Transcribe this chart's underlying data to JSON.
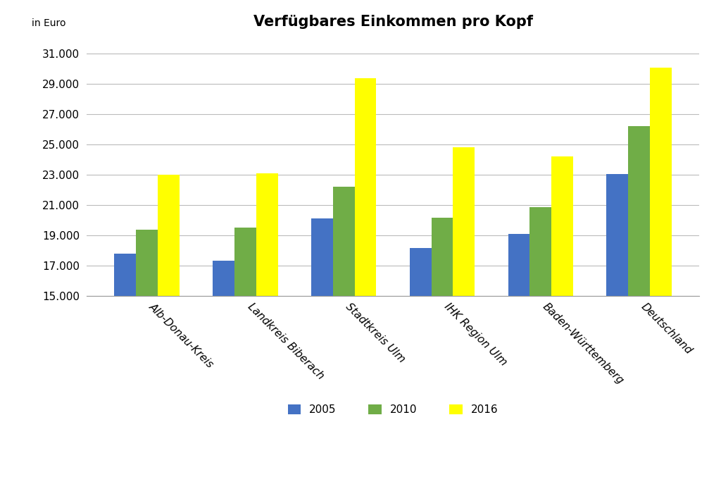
{
  "title": "Verfügbares Einkommen pro Kopf",
  "in_euro_label": "in Euro",
  "categories": [
    "Alb-Donau-Kreis",
    "Landkreis Biberach",
    "Stadtkreis Ulm",
    "IHK Region Ulm",
    "Baden-Württemberg",
    "Deutschland"
  ],
  "series": [
    {
      "label": "2005",
      "color": "#4472C4",
      "values": [
        17800,
        17300,
        20100,
        18150,
        19100,
        23050
      ]
    },
    {
      "label": "2010",
      "color": "#70AD47",
      "values": [
        19350,
        19500,
        22200,
        20150,
        20850,
        26200
      ]
    },
    {
      "label": "2016",
      "color": "#FFFF00",
      "values": [
        23000,
        23100,
        29350,
        24800,
        24200,
        30050
      ]
    }
  ],
  "ymin": 15000,
  "ylim": [
    15000,
    32000
  ],
  "yticks": [
    15000,
    17000,
    19000,
    21000,
    23000,
    25000,
    27000,
    29000,
    31000
  ],
  "ytick_labels": [
    "15.000",
    "17.000",
    "19.000",
    "21.000",
    "23.000",
    "25.000",
    "27.000",
    "29.000",
    "31.000"
  ],
  "background_color": "#FFFFFF",
  "grid_color": "#BBBBBB",
  "bar_width": 0.22,
  "title_fontsize": 15,
  "tick_fontsize": 11,
  "legend_fontsize": 11
}
